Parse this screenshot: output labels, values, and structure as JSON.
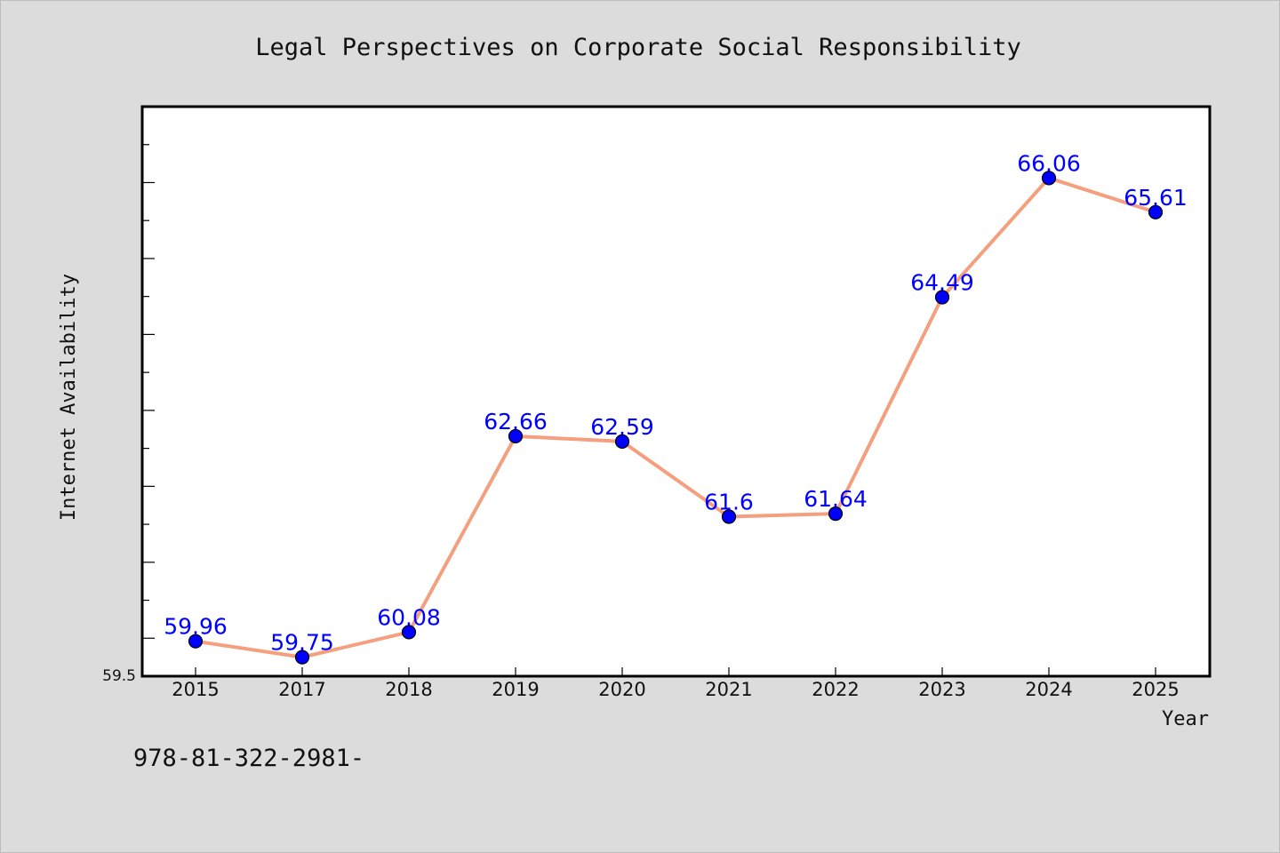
{
  "chart_data": {
    "type": "line",
    "title": "Legal Perspectives on Corporate Social Responsibility",
    "xlabel": "Year",
    "ylabel": "Internet Availability",
    "categories": [
      "2015",
      "2017",
      "2018",
      "2019",
      "2020",
      "2021",
      "2022",
      "2023",
      "2024",
      "2025"
    ],
    "series": [
      {
        "values": [
          59.96,
          59.75,
          60.08,
          62.66,
          62.59,
          61.6,
          61.64,
          64.49,
          66.06,
          65.61
        ],
        "data_labels": [
          "59.96",
          "59.75",
          "60.08",
          "62.66",
          "62.59",
          "61.6",
          "61.64",
          "64.49",
          "66.06",
          "65.61"
        ]
      }
    ],
    "ylim": [
      59.5,
      67.0
    ],
    "y_tick_labels": [
      "59.5"
    ],
    "grid": false,
    "legend": "none",
    "colors": {
      "line": "#f4a07e",
      "marker": "#0000ff",
      "data_label": "#0000ff",
      "background": "#dcdcdc",
      "plot_area": "#ffffff"
    }
  },
  "footer": {
    "text": "978-81-322-2981-"
  }
}
